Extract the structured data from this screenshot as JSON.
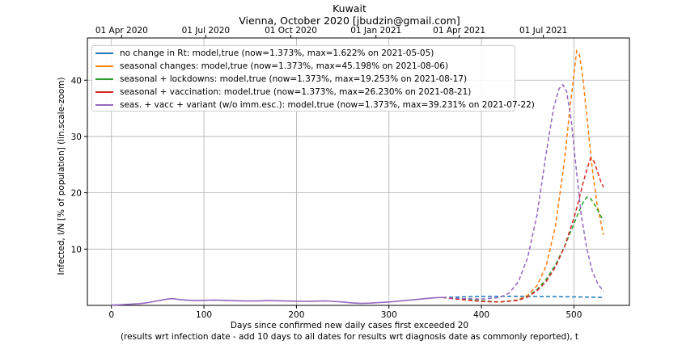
{
  "header": {
    "title": "Kuwait",
    "subtitle": "Vienna, October 2020 [jbudzin@gmail.com]"
  },
  "chart_data": {
    "type": "line",
    "xlabel_line1": "Days since confirmed new daily cases first exceeded 20",
    "xlabel_line2": "(results wrt infection date - add 10 days to all dates for results wrt diagnosis date as commonly reported), t",
    "ylabel": "Infected, I/N [% of population] (lin.scale-zoom)",
    "xlim": [
      -26,
      560
    ],
    "ylim": [
      0,
      47.5
    ],
    "x_ticks": [
      0,
      100,
      200,
      300,
      400,
      500
    ],
    "y_ticks": [
      10,
      20,
      30,
      40
    ],
    "top_axis_ticks": [
      {
        "label": "01 Apr 2020",
        "x": 11
      },
      {
        "label": "01 Jul 2020",
        "x": 102
      },
      {
        "label": "01 Oct 2020",
        "x": 194
      },
      {
        "label": "01 Jan 2021",
        "x": 286
      },
      {
        "label": "01 Apr 2021",
        "x": 376
      },
      {
        "label": "01 Jul 2021",
        "x": 467
      }
    ],
    "grid": true,
    "legend_position": "top-left",
    "history": {
      "x": [
        0,
        10,
        20,
        30,
        40,
        50,
        60,
        65,
        70,
        80,
        90,
        100,
        110,
        120,
        130,
        140,
        150,
        160,
        170,
        180,
        190,
        200,
        210,
        220,
        230,
        240,
        250,
        260,
        270,
        280,
        290,
        300,
        310,
        320,
        330,
        340,
        350,
        358
      ],
      "y": [
        0.05,
        0.12,
        0.2,
        0.3,
        0.5,
        0.8,
        1.1,
        1.2,
        1.1,
        0.95,
        0.85,
        0.9,
        0.95,
        0.9,
        0.85,
        0.8,
        0.78,
        0.8,
        0.85,
        0.82,
        0.78,
        0.75,
        0.72,
        0.75,
        0.8,
        0.72,
        0.6,
        0.45,
        0.35,
        0.4,
        0.5,
        0.6,
        0.75,
        0.9,
        1.05,
        1.2,
        1.35,
        1.4
      ]
    },
    "series": [
      {
        "name": "no change in Rt: model,true (now=1.373%, max=1.622% on 2021-05-05)",
        "color": "#1f77b4",
        "x": [
          358,
          380,
          400,
          410,
          420,
          430,
          440,
          450,
          460,
          480,
          500,
          520,
          532
        ],
        "y": [
          1.4,
          1.5,
          1.58,
          1.6,
          1.62,
          1.62,
          1.61,
          1.6,
          1.58,
          1.55,
          1.5,
          1.45,
          1.42
        ]
      },
      {
        "name": "seasonal changes: model,true (now=1.373%, max=45.198% on 2021-08-06)",
        "color": "#ff7f0e",
        "x": [
          358,
          380,
          400,
          420,
          440,
          450,
          460,
          470,
          480,
          490,
          495,
          500,
          503,
          506,
          510,
          515,
          520,
          525,
          532
        ],
        "y": [
          1.4,
          1.0,
          0.7,
          0.6,
          1.0,
          1.8,
          3.5,
          7.0,
          14.0,
          26.0,
          34.0,
          41.0,
          45.2,
          44.5,
          40.0,
          32.0,
          24.0,
          18.0,
          12.5
        ]
      },
      {
        "name": "seasonal + lockdowns: model,true (now=1.373%, max=19.253% on 2021-08-17)",
        "color": "#2ca02c",
        "x": [
          358,
          380,
          400,
          420,
          440,
          450,
          460,
          470,
          480,
          490,
          500,
          505,
          510,
          514,
          518,
          522,
          526,
          532
        ],
        "y": [
          1.4,
          1.1,
          0.8,
          0.6,
          0.9,
          1.6,
          2.8,
          4.6,
          7.2,
          10.5,
          14.5,
          16.5,
          18.3,
          19.25,
          19.0,
          18.0,
          16.8,
          15.0
        ]
      },
      {
        "name": "seasonal + vaccination: model,true (now=1.373%, max=26.230% on 2021-08-21)",
        "color": "#d62728",
        "x": [
          358,
          380,
          400,
          420,
          440,
          450,
          460,
          470,
          480,
          490,
          500,
          505,
          510,
          515,
          518,
          522,
          526,
          529,
          532
        ],
        "y": [
          1.4,
          1.0,
          0.7,
          0.6,
          0.9,
          1.5,
          2.6,
          4.2,
          6.8,
          10.5,
          15.5,
          18.5,
          21.8,
          24.6,
          26.2,
          25.5,
          23.5,
          22.0,
          21.0
        ]
      },
      {
        "name": "seas. + vacc + variant (w/o imm.esc.): model,true (now=1.373%, max=39.231% on 2021-07-22)",
        "color": "#9467bd",
        "x": [
          358,
          380,
          400,
          420,
          430,
          440,
          450,
          460,
          470,
          478,
          484,
          488,
          492,
          497,
          502,
          508,
          514,
          520,
          526,
          532
        ],
        "y": [
          1.4,
          1.2,
          1.1,
          1.4,
          2.2,
          4.2,
          8.5,
          16.0,
          27.0,
          35.0,
          38.5,
          39.2,
          38.0,
          33.0,
          25.0,
          16.0,
          10.0,
          6.0,
          3.8,
          2.5
        ]
      }
    ]
  }
}
